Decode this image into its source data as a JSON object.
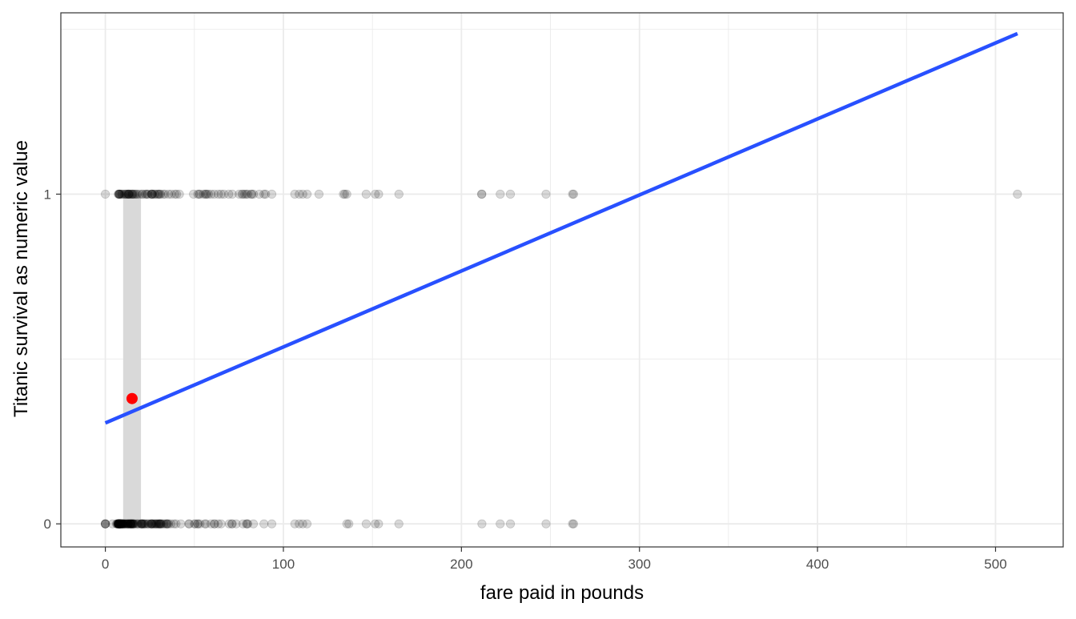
{
  "chart_data": {
    "type": "scatter",
    "title": "",
    "xlabel": "fare paid in pounds",
    "ylabel": "Titanic survival as numeric value",
    "xlim": [
      -25,
      538
    ],
    "ylim": [
      -0.07,
      1.55
    ],
    "x_ticks": [
      0,
      100,
      200,
      300,
      400,
      500
    ],
    "x_tick_labels": [
      "0",
      "100",
      "200",
      "300",
      "400",
      "500"
    ],
    "y_ticks": [
      0,
      1
    ],
    "y_tick_labels": [
      "0",
      "1"
    ],
    "y_minor_ticks": [
      0.5,
      1.5
    ],
    "x_minor_ticks": [
      50,
      150,
      250,
      350,
      450
    ],
    "grid": true,
    "legend": "none",
    "colors": {
      "points": "#000000",
      "fit_line": "#2850ff",
      "highlight": "#ff0000",
      "band": "#d9d9d9",
      "grid": "#ebebeb"
    },
    "point_opacity": 0.15,
    "series": [
      {
        "y": 1,
        "x": [
          0,
          7.25,
          7.55,
          7.75,
          7.8,
          7.9,
          8.05,
          8.5,
          9.2,
          9.5,
          10.5,
          11.1,
          11.5,
          12,
          12.5,
          13,
          13,
          13,
          13.4,
          13.8,
          14.5,
          15,
          15.2,
          15.5,
          16.1,
          16.7,
          17.4,
          18,
          19.2,
          20.5,
          21,
          22.4,
          23,
          23.5,
          24,
          25.9,
          26,
          26,
          26.3,
          26.6,
          27.7,
          27.9,
          29,
          29.7,
          30,
          30.5,
          31,
          32.5,
          33.5,
          35.5,
          37,
          39,
          40,
          41.6,
          49.5,
          51.9,
          52.6,
          53.1,
          55,
          56,
          56.5,
          57,
          57.9,
          59.4,
          61.2,
          63.4,
          65,
          66.6,
          69.3,
          71.3,
          75.2,
          76.7,
          77.3,
          78.3,
          79.2,
          80,
          81.9,
          82.2,
          83.2,
          86.5,
          89.1,
          90,
          93.5,
          106.4,
          108.9,
          110.9,
          113.3,
          120,
          133.7,
          134.5,
          135.6,
          146.5,
          151.6,
          153.5,
          164.9,
          211.3,
          211.5,
          221.8,
          227.5,
          247.5,
          262.4,
          263,
          512.3
        ]
      },
      {
        "y": 0,
        "x": [
          0,
          0,
          0,
          0,
          4,
          6.2,
          6.5,
          6.9,
          7,
          7.05,
          7.13,
          7.23,
          7.25,
          7.25,
          7.52,
          7.55,
          7.65,
          7.73,
          7.75,
          7.78,
          7.8,
          7.85,
          7.88,
          7.9,
          7.9,
          8.05,
          8.05,
          8.05,
          8.11,
          8.14,
          8.3,
          8.36,
          8.43,
          8.5,
          8.65,
          8.66,
          8.68,
          8.71,
          9,
          9.22,
          9.35,
          9.48,
          9.5,
          9.59,
          9.83,
          9.84,
          10.46,
          10.5,
          10.52,
          11.13,
          11.24,
          11.5,
          12.29,
          12.35,
          12.47,
          12.88,
          13,
          13,
          13.5,
          13.86,
          14,
          14.1,
          14.4,
          14.45,
          14.5,
          14.46,
          15.05,
          15.1,
          15.25,
          15.5,
          15.55,
          15.85,
          16.1,
          16.7,
          17.8,
          18,
          18.75,
          19.97,
          20.21,
          20.25,
          20.52,
          20.58,
          21,
          21.08,
          21.68,
          22.03,
          22.36,
          23.25,
          24,
          24.15,
          25.47,
          25.59,
          25.93,
          26,
          26.25,
          26.55,
          27,
          27.72,
          27.9,
          28.5,
          28.71,
          29.12,
          29.7,
          30,
          30.07,
          30.5,
          30.7,
          31,
          31.27,
          31.39,
          32.32,
          33,
          34,
          34.38,
          34.65,
          35,
          35.5,
          36.75,
          38.5,
          39.69,
          42.4,
          46.9,
          47.1,
          50,
          50.5,
          51.86,
          52,
          53.1,
          55.9,
          56.5,
          59.4,
          61.18,
          61.38,
          63.36,
          65,
          69.55,
          71,
          71.28,
          73.5,
          77.29,
          79.2,
          79.65,
          80,
          83.16,
          89.1,
          93.5,
          106.43,
          108.9,
          110.88,
          113.28,
          135.63,
          136.78,
          146.52,
          151.55,
          153.46,
          164.87,
          211.5,
          221.78,
          227.53,
          247.52,
          262.38,
          263
        ]
      }
    ],
    "fit_line": {
      "method": "linear",
      "x": [
        0,
        512.33
      ],
      "y": [
        0.306,
        1.487
      ]
    },
    "band": {
      "x": [
        10,
        20
      ],
      "y": [
        0,
        1
      ]
    },
    "highlight_point": {
      "x": 15,
      "y": 0.38
    }
  }
}
